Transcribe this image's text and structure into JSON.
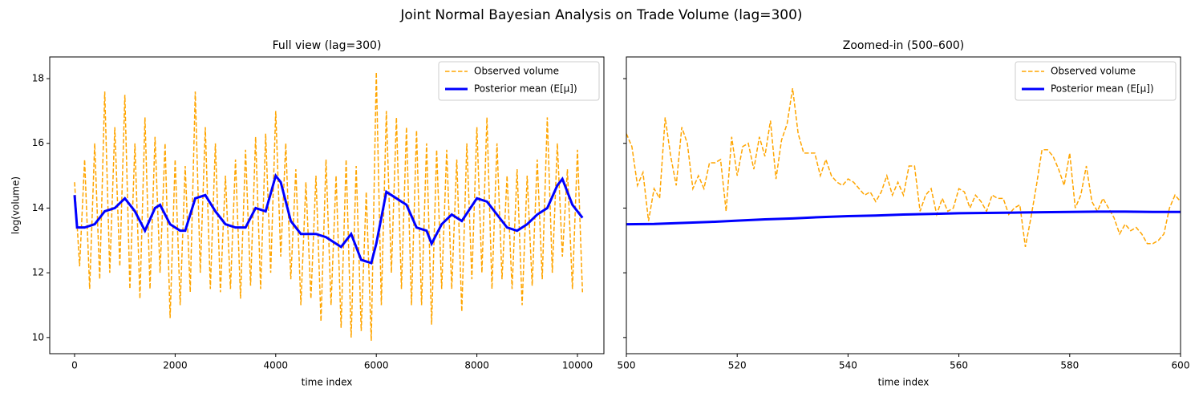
{
  "title": "Joint Normal Bayesian Analysis on Trade Volume (lag=300)",
  "chart_data": [
    {
      "type": "line",
      "title": "Full view (lag=300)",
      "xlabel": "time index",
      "ylabel": "log(volume)",
      "xlim": [
        -494,
        10526
      ],
      "ylim": [
        9.5,
        18.67
      ],
      "xticks": [
        0,
        2000,
        4000,
        6000,
        8000,
        10000
      ],
      "yticks": [
        10,
        12,
        14,
        16,
        18
      ],
      "legend": "upper right",
      "series": [
        {
          "name": "Observed volume",
          "color": "#ffa500",
          "style": "dashed",
          "x": [
            0,
            100,
            200,
            300,
            400,
            500,
            600,
            700,
            800,
            900,
            1000,
            1100,
            1200,
            1300,
            1400,
            1500,
            1600,
            1700,
            1800,
            1900,
            2000,
            2100,
            2200,
            2300,
            2400,
            2500,
            2600,
            2700,
            2800,
            2900,
            3000,
            3100,
            3200,
            3300,
            3400,
            3500,
            3600,
            3700,
            3800,
            3900,
            4000,
            4100,
            4200,
            4300,
            4400,
            4500,
            4600,
            4700,
            4800,
            4900,
            5000,
            5100,
            5200,
            5300,
            5400,
            5500,
            5600,
            5700,
            5800,
            5900,
            6000,
            6100,
            6200,
            6300,
            6400,
            6500,
            6600,
            6700,
            6800,
            6900,
            7000,
            7100,
            7200,
            7300,
            7400,
            7500,
            7600,
            7700,
            7800,
            7900,
            8000,
            8100,
            8200,
            8300,
            8400,
            8500,
            8600,
            8700,
            8800,
            8900,
            9000,
            9100,
            9200,
            9300,
            9400,
            9500,
            9600,
            9700,
            9800,
            9900,
            10000,
            10100
          ],
          "values": [
            14.8,
            12.2,
            15.5,
            11.5,
            16.0,
            11.8,
            17.6,
            12.0,
            16.5,
            12.2,
            17.5,
            11.5,
            16.0,
            11.2,
            16.8,
            11.5,
            16.2,
            12.0,
            16.0,
            10.6,
            15.5,
            11.0,
            15.3,
            11.4,
            17.6,
            12.0,
            16.5,
            11.5,
            16.0,
            11.4,
            15.0,
            11.5,
            15.5,
            11.2,
            15.8,
            11.6,
            16.2,
            11.5,
            16.3,
            12.0,
            17.0,
            12.5,
            16.0,
            11.8,
            15.2,
            11.0,
            14.8,
            11.2,
            15.0,
            10.5,
            15.5,
            11.0,
            15.0,
            10.3,
            15.5,
            10.0,
            15.3,
            10.2,
            14.5,
            9.9,
            18.2,
            11.0,
            17.0,
            12.0,
            16.8,
            11.5,
            16.5,
            11.0,
            16.4,
            11.0,
            16.0,
            10.4,
            15.8,
            11.5,
            15.8,
            11.5,
            15.5,
            10.8,
            16.0,
            11.8,
            16.5,
            12.0,
            16.8,
            11.5,
            16.0,
            11.8,
            15.0,
            11.5,
            15.2,
            11.0,
            15.0,
            11.6,
            15.5,
            11.8,
            16.8,
            12.0,
            16.0,
            12.5,
            15.2,
            11.5,
            15.8,
            11.4
          ]
        },
        {
          "name": "Posterior mean (E[μ])",
          "color": "#0000ff",
          "style": "solid",
          "x": [
            0,
            50,
            200,
            400,
            600,
            800,
            1000,
            1200,
            1400,
            1600,
            1700,
            1900,
            2100,
            2200,
            2400,
            2600,
            2800,
            3000,
            3200,
            3400,
            3600,
            3800,
            4000,
            4100,
            4300,
            4500,
            4800,
            5000,
            5300,
            5500,
            5700,
            5900,
            6000,
            6200,
            6400,
            6600,
            6800,
            7000,
            7100,
            7300,
            7500,
            7700,
            8000,
            8200,
            8400,
            8600,
            8800,
            9000,
            9200,
            9400,
            9600,
            9700,
            9900,
            10100
          ],
          "values": [
            14.4,
            13.4,
            13.4,
            13.5,
            13.9,
            14.0,
            14.3,
            13.9,
            13.3,
            14.0,
            14.1,
            13.5,
            13.3,
            13.3,
            14.3,
            14.4,
            13.9,
            13.5,
            13.4,
            13.4,
            14.0,
            13.9,
            15.0,
            14.8,
            13.6,
            13.2,
            13.2,
            13.1,
            12.8,
            13.2,
            12.4,
            12.3,
            12.9,
            14.5,
            14.3,
            14.1,
            13.4,
            13.3,
            12.9,
            13.5,
            13.8,
            13.6,
            14.3,
            14.2,
            13.8,
            13.4,
            13.3,
            13.5,
            13.8,
            14.0,
            14.7,
            14.9,
            14.1,
            13.7
          ]
        }
      ]
    },
    {
      "type": "line",
      "title": "Zoomed-in (500–600)",
      "xlabel": "time index",
      "xlim": [
        500,
        600
      ],
      "ylim": [
        9.5,
        18.67
      ],
      "xticks": [
        500,
        520,
        540,
        560,
        580,
        600
      ],
      "legend": "upper right",
      "series": [
        {
          "name": "Observed volume",
          "color": "#ffa500",
          "style": "dashed",
          "x": [
            500,
            501,
            502,
            503,
            504,
            505,
            506,
            507,
            508,
            509,
            510,
            511,
            512,
            513,
            514,
            515,
            516,
            517,
            518,
            519,
            520,
            521,
            522,
            523,
            524,
            525,
            526,
            527,
            528,
            529,
            530,
            531,
            532,
            533,
            534,
            535,
            536,
            537,
            538,
            539,
            540,
            541,
            542,
            543,
            544,
            545,
            546,
            547,
            548,
            549,
            550,
            551,
            552,
            553,
            554,
            555,
            556,
            557,
            558,
            559,
            560,
            561,
            562,
            563,
            564,
            565,
            566,
            567,
            568,
            569,
            570,
            571,
            572,
            573,
            574,
            575,
            576,
            577,
            578,
            579,
            580,
            581,
            582,
            583,
            584,
            585,
            586,
            587,
            588,
            589,
            590,
            591,
            592,
            593,
            594,
            595,
            596,
            597,
            598,
            599,
            600
          ],
          "values": [
            16.3,
            15.9,
            14.7,
            15.1,
            13.6,
            14.6,
            14.3,
            16.8,
            15.6,
            14.7,
            16.5,
            16.0,
            14.6,
            15.0,
            14.6,
            15.4,
            15.4,
            15.5,
            13.9,
            16.2,
            15.0,
            15.9,
            16.0,
            15.2,
            16.2,
            15.6,
            16.7,
            14.9,
            16.1,
            16.6,
            17.7,
            16.3,
            15.7,
            15.7,
            15.7,
            15.0,
            15.5,
            15.0,
            14.8,
            14.7,
            14.9,
            14.8,
            14.6,
            14.4,
            14.5,
            14.2,
            14.5,
            15.0,
            14.4,
            14.8,
            14.4,
            15.3,
            15.3,
            13.9,
            14.4,
            14.6,
            13.8,
            14.3,
            13.9,
            14.0,
            14.6,
            14.5,
            14.0,
            14.4,
            14.2,
            13.9,
            14.4,
            14.3,
            14.3,
            13.8,
            14.0,
            14.1,
            12.8,
            13.7,
            14.7,
            15.8,
            15.8,
            15.6,
            15.2,
            14.7,
            15.7,
            14.0,
            14.4,
            15.3,
            14.2,
            13.9,
            14.3,
            14.0,
            13.7,
            13.2,
            13.5,
            13.3,
            13.4,
            13.2,
            12.9,
            12.9,
            13.0,
            13.2,
            14.0,
            14.4,
            14.2
          ]
        },
        {
          "name": "Posterior mean (E[μ])",
          "color": "#0000ff",
          "style": "solid",
          "x": [
            500,
            505,
            510,
            515,
            520,
            525,
            530,
            535,
            540,
            545,
            550,
            555,
            560,
            565,
            570,
            575,
            580,
            585,
            590,
            595,
            600
          ],
          "values": [
            13.5,
            13.51,
            13.54,
            13.57,
            13.61,
            13.65,
            13.68,
            13.72,
            13.75,
            13.77,
            13.8,
            13.82,
            13.84,
            13.85,
            13.86,
            13.87,
            13.88,
            13.89,
            13.89,
            13.88,
            13.88
          ]
        }
      ]
    }
  ]
}
